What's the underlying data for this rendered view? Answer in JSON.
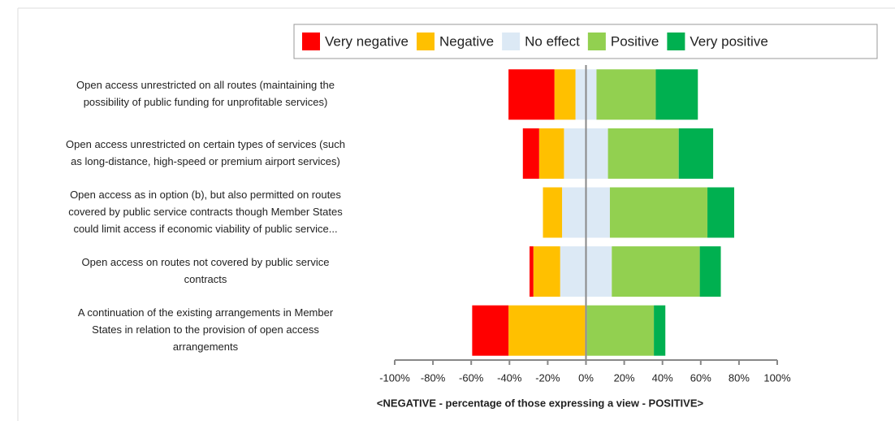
{
  "chart_data": {
    "type": "diverging-bar",
    "categories": [
      [
        "Open access unrestricted on all routes (maintaining the",
        "possibility of public funding for unprofitable services)"
      ],
      [
        "Open access unrestricted on certain types of services (such",
        "as long-distance, high-speed or premium airport services)"
      ],
      [
        "Open access as in option (b), but also permitted on routes",
        "covered by public service contracts though Member States",
        "could limit access if economic viability of public service..."
      ],
      [
        "Open access on routes not covered by public service",
        "contracts"
      ],
      [
        "A continuation of the existing arrangements in Member",
        "States in relation to the provision of open access",
        "arrangements"
      ]
    ],
    "series": [
      {
        "name": "Very negative",
        "color": "#ff0000",
        "side": "negative",
        "values": [
          24,
          8.5,
          0,
          2,
          19
        ]
      },
      {
        "name": "Negative",
        "color": "#ffc000",
        "side": "negative",
        "values": [
          11,
          13,
          10,
          14,
          40
        ]
      },
      {
        "name": "No effect",
        "color": "#dce9f5",
        "side": "neutral",
        "values": [
          11,
          23,
          25,
          27,
          1
        ]
      },
      {
        "name": "Positive",
        "color": "#92d050",
        "side": "positive",
        "values": [
          31,
          37,
          51,
          46,
          35
        ]
      },
      {
        "name": "Very positive",
        "color": "#00b050",
        "side": "positive",
        "values": [
          22,
          18,
          14,
          11,
          6
        ]
      }
    ],
    "xlabel": "<NEGATIVE  -  percentage of those expressing a view  -  POSITIVE>",
    "xlim": [
      -100,
      100
    ],
    "xticks": [
      {
        "value": -100,
        "label": "-100%"
      },
      {
        "value": -80,
        "label": "-80%"
      },
      {
        "value": -60,
        "label": "-60%"
      },
      {
        "value": -40,
        "label": "-40%"
      },
      {
        "value": -20,
        "label": "-20%"
      },
      {
        "value": 0,
        "label": "0%"
      },
      {
        "value": 20,
        "label": "20%"
      },
      {
        "value": 40,
        "label": "40%"
      },
      {
        "value": 60,
        "label": "60%"
      },
      {
        "value": 80,
        "label": "80%"
      },
      {
        "value": 100,
        "label": "100%"
      }
    ],
    "legend": "top"
  }
}
